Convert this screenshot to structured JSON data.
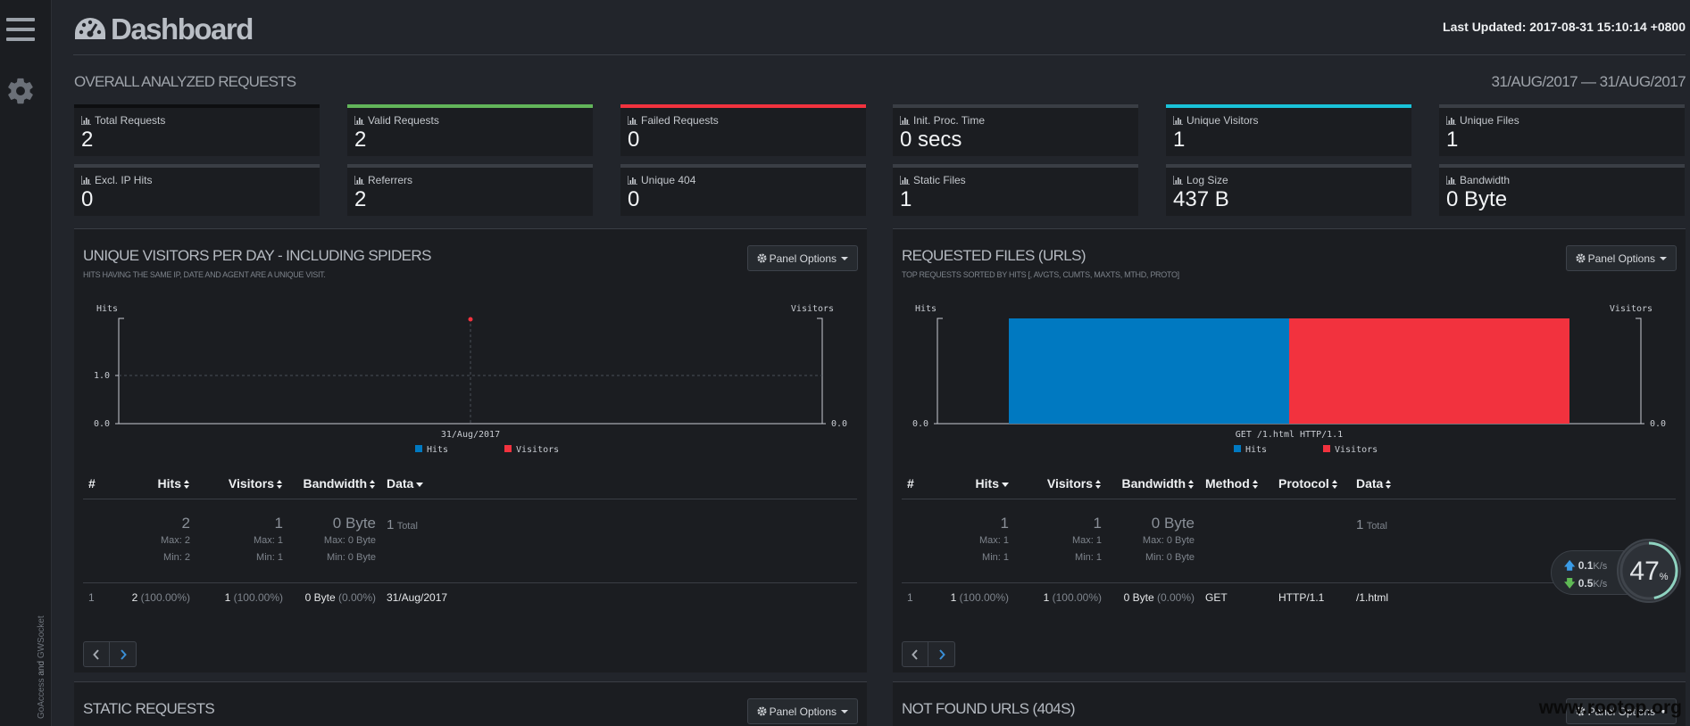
{
  "app": {
    "title": "Dashboard",
    "last_updated": "Last Updated: 2017-08-31 15:10:14 +0800",
    "credit_a": "GoAccess",
    "credit_and": " and ",
    "credit_b": "GWSocket"
  },
  "overall": {
    "heading": "OVERALL ANALYZED REQUESTS",
    "date_range": "31/AUG/2017 — 31/AUG/2017"
  },
  "metrics": [
    {
      "label": "Total Requests",
      "value": "2",
      "accent": "#0d0e10"
    },
    {
      "label": "Valid Requests",
      "value": "2",
      "accent": "#62b55a"
    },
    {
      "label": "Failed Requests",
      "value": "0",
      "accent": "#f2323e"
    },
    {
      "label": "Init. Proc. Time",
      "value": "0 secs",
      "accent": "#3a3e45"
    },
    {
      "label": "Unique Visitors",
      "value": "1",
      "accent": "#19c3d9"
    },
    {
      "label": "Unique Files",
      "value": "1",
      "accent": "#3a3e45"
    },
    {
      "label": "Excl. IP Hits",
      "value": "0",
      "accent": "#3a3e45"
    },
    {
      "label": "Referrers",
      "value": "2",
      "accent": "#3a3e45"
    },
    {
      "label": "Unique 404",
      "value": "0",
      "accent": "#3a3e45"
    },
    {
      "label": "Static Files",
      "value": "1",
      "accent": "#3a3e45"
    },
    {
      "label": "Log Size",
      "value": "437 B",
      "accent": "#3a3e45"
    },
    {
      "label": "Bandwidth",
      "value": "0 Byte",
      "accent": "#3a3e45"
    }
  ],
  "panel_options_label": "Panel Options",
  "visitors_panel": {
    "title": "UNIQUE VISITORS PER DAY - INCLUDING SPIDERS",
    "subtitle": "HITS HAVING THE SAME IP, DATE AND AGENT ARE A UNIQUE VISIT.",
    "columns": [
      "#",
      "Hits",
      "Visitors",
      "Bandwidth",
      "Data"
    ],
    "summary": {
      "hits": "2",
      "hits_max": "Max: 2",
      "hits_min": "Min: 2",
      "visitors": "1",
      "visitors_max": "Max: 1",
      "visitors_min": "Min: 1",
      "bw": "0 Byte",
      "bw_max": "Max: 0 Byte",
      "bw_min": "Min: 0 Byte",
      "data_count": "1",
      "data_total": "Total"
    },
    "rows": [
      {
        "n": "1",
        "hits": "2",
        "hits_pct": "(100.00%)",
        "visitors": "1",
        "visitors_pct": "(100.00%)",
        "bw": "0 Byte",
        "bw_pct": "(0.00%)",
        "data": "31/Aug/2017"
      }
    ]
  },
  "files_panel": {
    "title": "REQUESTED FILES (URLS)",
    "subtitle": "TOP REQUESTS SORTED BY HITS [, AVGTS, CUMTS, MAXTS, MTHD, PROTO]",
    "columns": [
      "#",
      "Hits",
      "Visitors",
      "Bandwidth",
      "Method",
      "Protocol",
      "Data"
    ],
    "summary": {
      "hits": "1",
      "hits_max": "Max: 1",
      "hits_min": "Min: 1",
      "visitors": "1",
      "visitors_max": "Max: 1",
      "visitors_min": "Min: 1",
      "bw": "0 Byte",
      "bw_max": "Max: 0 Byte",
      "bw_min": "Min: 0 Byte",
      "data_count": "1",
      "data_total": "Total"
    },
    "rows": [
      {
        "n": "1",
        "hits": "1",
        "hits_pct": "(100.00%)",
        "visitors": "1",
        "visitors_pct": "(100.00%)",
        "bw": "0 Byte",
        "bw_pct": "(0.00%)",
        "method": "GET",
        "protocol": "HTTP/1.1",
        "data": "/1.html"
      }
    ]
  },
  "static_panel": {
    "title": "STATIC REQUESTS"
  },
  "notfound_panel": {
    "title": "NOT FOUND URLS (404S)"
  },
  "net_widget": {
    "up": "0.1",
    "up_unit": "K/s",
    "down": "0.5",
    "down_unit": "K/s",
    "percent": "47",
    "percent_unit": "%",
    "percent_value": 0.47
  },
  "watermark": "www.rootop.org",
  "colors": {
    "hits": "#0079c1",
    "visitors": "#f2323e"
  },
  "chart_data": [
    {
      "type": "line",
      "x": [
        "31/Aug/2017"
      ],
      "series": [
        {
          "name": "Hits",
          "values": [
            2
          ]
        },
        {
          "name": "Visitors",
          "values": [
            1
          ]
        }
      ],
      "ylabel": "Hits",
      "y2label": "Visitors",
      "yticks": [
        "0.0",
        "1.0"
      ],
      "y2ticks": [
        "0.0"
      ],
      "legend": "bottom"
    },
    {
      "type": "bar",
      "categories": [
        "GET /1.html HTTP/1.1"
      ],
      "series": [
        {
          "name": "Hits",
          "values": [
            1
          ]
        },
        {
          "name": "Visitors",
          "values": [
            1
          ]
        }
      ],
      "ylabel": "Hits",
      "y2label": "Visitors",
      "yticks": [
        "0.0"
      ],
      "y2ticks": [
        "0.0"
      ],
      "legend": "bottom"
    }
  ]
}
